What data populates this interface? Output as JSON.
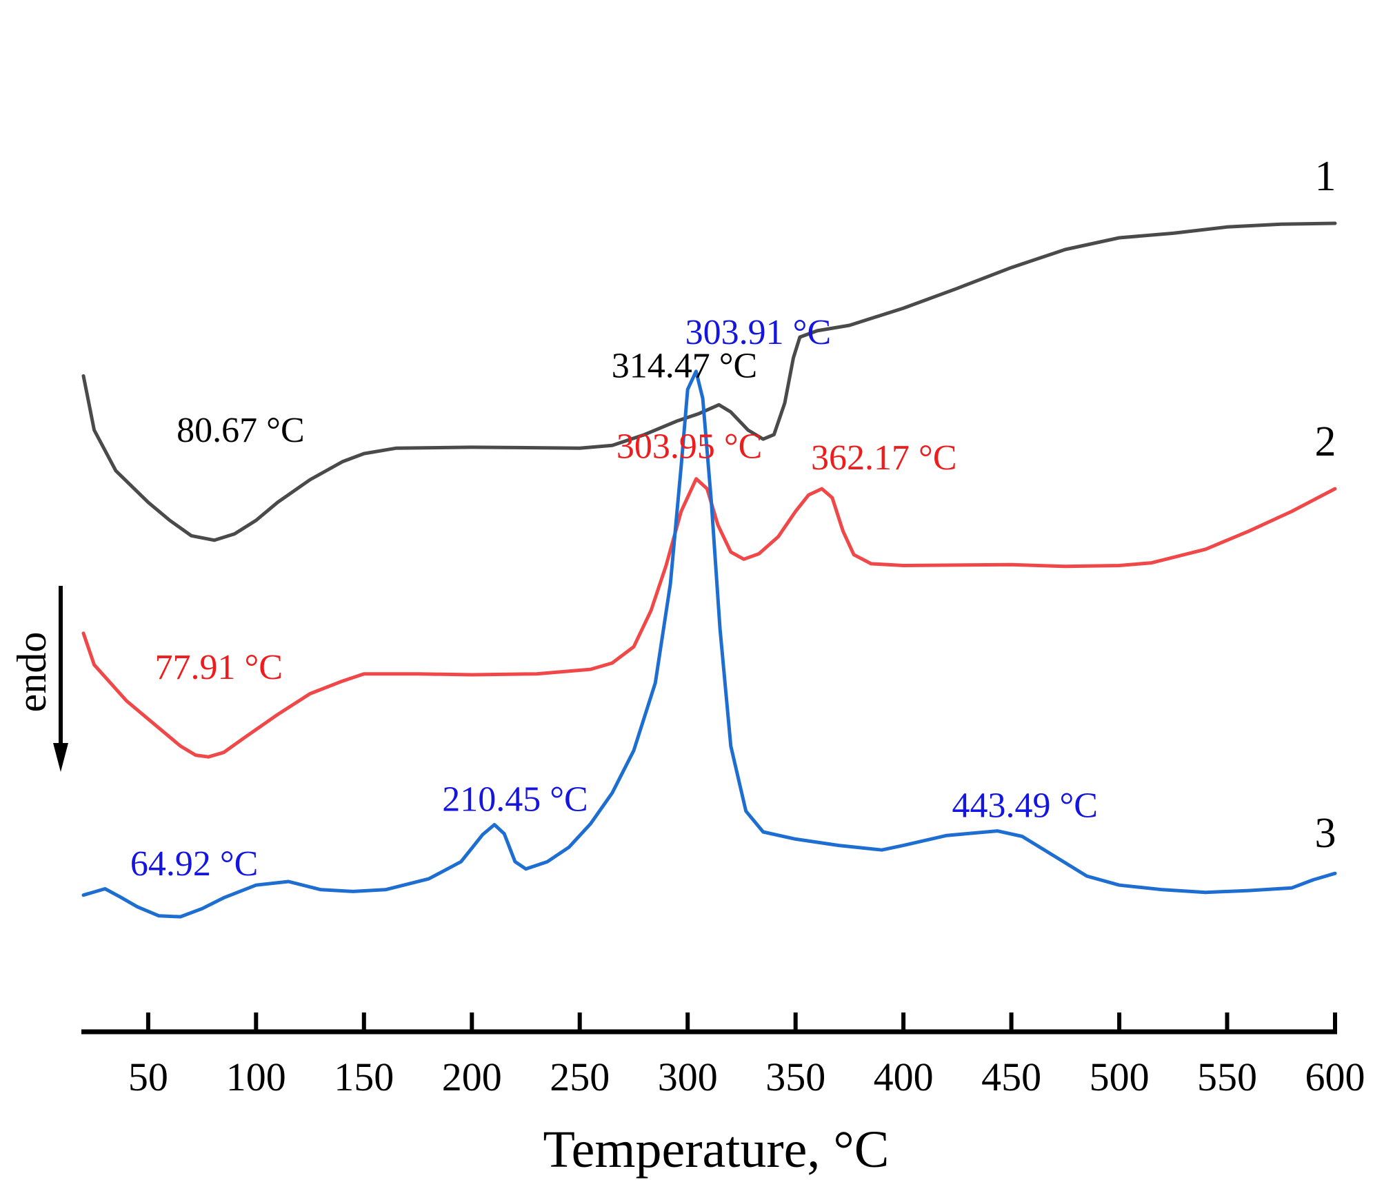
{
  "chart_data": {
    "type": "line",
    "title": "",
    "xlabel": "Temperature, °C",
    "ylabel": "",
    "xlim": [
      20,
      600
    ],
    "ylim": [
      0,
      100
    ],
    "x_ticks": [
      50,
      100,
      150,
      200,
      250,
      300,
      350,
      400,
      450,
      500,
      550,
      600
    ],
    "y_axis_shown": false,
    "grid": false,
    "direction_indicator": {
      "label": "endo",
      "direction": "down"
    },
    "series": [
      {
        "name": "1",
        "color": "#4a4a4a",
        "points": [
          [
            20,
            66
          ],
          [
            25,
            60
          ],
          [
            35,
            55.5
          ],
          [
            50,
            52
          ],
          [
            60,
            50
          ],
          [
            70,
            48.3
          ],
          [
            80.67,
            47.8
          ],
          [
            90,
            48.5
          ],
          [
            100,
            50
          ],
          [
            110,
            52
          ],
          [
            125,
            54.5
          ],
          [
            140,
            56.5
          ],
          [
            150,
            57.4
          ],
          [
            165,
            58
          ],
          [
            200,
            58.1
          ],
          [
            250,
            58
          ],
          [
            265,
            58.3
          ],
          [
            280,
            59.5
          ],
          [
            295,
            61
          ],
          [
            305,
            61.8
          ],
          [
            314.47,
            62.8
          ],
          [
            320,
            62
          ],
          [
            328,
            60
          ],
          [
            335,
            59
          ],
          [
            340,
            59.5
          ],
          [
            345,
            63
          ],
          [
            349,
            68
          ],
          [
            352,
            70.3
          ],
          [
            360,
            71
          ],
          [
            375,
            71.6
          ],
          [
            400,
            73.5
          ],
          [
            425,
            75.7
          ],
          [
            450,
            78
          ],
          [
            475,
            80
          ],
          [
            500,
            81.3
          ],
          [
            525,
            81.8
          ],
          [
            550,
            82.5
          ],
          [
            575,
            82.8
          ],
          [
            600,
            82.9
          ]
        ]
      },
      {
        "name": "2",
        "color": "#f04848",
        "points": [
          [
            20,
            37.5
          ],
          [
            25,
            34
          ],
          [
            40,
            30
          ],
          [
            55,
            27
          ],
          [
            65,
            25
          ],
          [
            72,
            24
          ],
          [
            77.91,
            23.8
          ],
          [
            85,
            24.3
          ],
          [
            95,
            26
          ],
          [
            110,
            28.5
          ],
          [
            125,
            30.8
          ],
          [
            140,
            32.2
          ],
          [
            150,
            33
          ],
          [
            175,
            33
          ],
          [
            200,
            32.9
          ],
          [
            230,
            33
          ],
          [
            255,
            33.5
          ],
          [
            265,
            34.2
          ],
          [
            275,
            36
          ],
          [
            283,
            40
          ],
          [
            290,
            45
          ],
          [
            297,
            51
          ],
          [
            303.95,
            54.6
          ],
          [
            309,
            53.5
          ],
          [
            314,
            49.5
          ],
          [
            320,
            46.5
          ],
          [
            326,
            45.7
          ],
          [
            333,
            46.3
          ],
          [
            342,
            48.2
          ],
          [
            350,
            51
          ],
          [
            356,
            52.8
          ],
          [
            362.17,
            53.5
          ],
          [
            367,
            52.5
          ],
          [
            372,
            48.8
          ],
          [
            377,
            46.2
          ],
          [
            385,
            45.2
          ],
          [
            400,
            45
          ],
          [
            450,
            45.1
          ],
          [
            475,
            44.9
          ],
          [
            500,
            45
          ],
          [
            515,
            45.3
          ],
          [
            540,
            46.8
          ],
          [
            560,
            48.8
          ],
          [
            580,
            51
          ],
          [
            600,
            53.5
          ]
        ]
      },
      {
        "name": "3",
        "color": "#1e6ed2",
        "points": [
          [
            20,
            8.5
          ],
          [
            30,
            9.2
          ],
          [
            37,
            8.3
          ],
          [
            45,
            7.2
          ],
          [
            55,
            6.2
          ],
          [
            64.92,
            6.1
          ],
          [
            75,
            7
          ],
          [
            85,
            8.2
          ],
          [
            100,
            9.6
          ],
          [
            115,
            10
          ],
          [
            130,
            9.1
          ],
          [
            145,
            8.9
          ],
          [
            160,
            9.1
          ],
          [
            180,
            10.3
          ],
          [
            195,
            12.2
          ],
          [
            205,
            15.2
          ],
          [
            210.45,
            16.3
          ],
          [
            215,
            15.3
          ],
          [
            220,
            12.2
          ],
          [
            225,
            11.4
          ],
          [
            235,
            12.2
          ],
          [
            245,
            13.8
          ],
          [
            255,
            16.4
          ],
          [
            265,
            19.8
          ],
          [
            275,
            24.5
          ],
          [
            285,
            32
          ],
          [
            292,
            43
          ],
          [
            297,
            56
          ],
          [
            300,
            64.5
          ],
          [
            303.91,
            66.5
          ],
          [
            307,
            63.5
          ],
          [
            311,
            52
          ],
          [
            315,
            38
          ],
          [
            320,
            25
          ],
          [
            327,
            17.8
          ],
          [
            335,
            15.5
          ],
          [
            350,
            14.7
          ],
          [
            370,
            14
          ],
          [
            390,
            13.5
          ],
          [
            400,
            14
          ],
          [
            420,
            15.1
          ],
          [
            443.49,
            15.6
          ],
          [
            455,
            15
          ],
          [
            470,
            12.8
          ],
          [
            485,
            10.6
          ],
          [
            500,
            9.6
          ],
          [
            520,
            9.1
          ],
          [
            540,
            8.8
          ],
          [
            560,
            9
          ],
          [
            580,
            9.3
          ],
          [
            590,
            10.2
          ],
          [
            600,
            10.9
          ]
        ]
      }
    ],
    "annotations": [
      {
        "series": "1",
        "text": "80.67 °C",
        "x": 80.67
      },
      {
        "series": "1",
        "text": "314.47 °C",
        "x": 314.47
      },
      {
        "series": "2",
        "text": "77.91 °C",
        "x": 77.91
      },
      {
        "series": "2",
        "text": "303.95 °C",
        "x": 303.95
      },
      {
        "series": "2",
        "text": "362.17 °C",
        "x": 362.17
      },
      {
        "series": "3",
        "text": "64.92 °C",
        "x": 64.92
      },
      {
        "series": "3",
        "text": "210.45 °C",
        "x": 210.45
      },
      {
        "series": "3",
        "text": "303.91 °C",
        "x": 303.91
      },
      {
        "series": "3",
        "text": "443.49 °C",
        "x": 443.49
      }
    ]
  }
}
